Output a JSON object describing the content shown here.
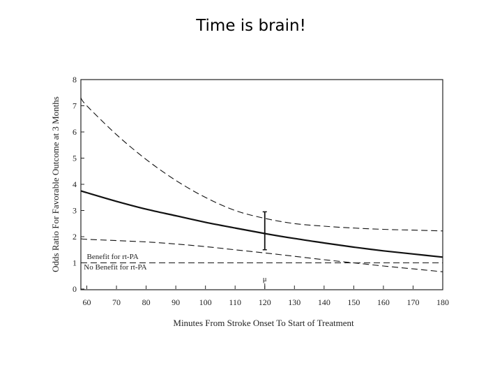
{
  "slide": {
    "title": "Time is brain!"
  },
  "chart_data": {
    "type": "line",
    "title": "",
    "xlabel": "Minutes From Stroke Onset To Start of Treatment",
    "ylabel": "Odds Ratio For Favorable Outcome at 3 Months",
    "xlim": [
      58,
      180
    ],
    "ylim": [
      0,
      8
    ],
    "xticks": [
      60,
      70,
      80,
      90,
      100,
      110,
      120,
      130,
      140,
      150,
      160,
      170,
      180
    ],
    "yticks": [
      0,
      1,
      2,
      3,
      4,
      5,
      6,
      7,
      8
    ],
    "grid": false,
    "x": [
      58,
      60,
      70,
      80,
      90,
      100,
      110,
      120,
      130,
      140,
      150,
      160,
      170,
      180
    ],
    "series": [
      {
        "style": "solid",
        "color": "#111111",
        "values": [
          3.75,
          3.68,
          3.35,
          3.05,
          2.8,
          2.55,
          2.33,
          2.12,
          1.93,
          1.76,
          1.6,
          1.46,
          1.34,
          1.22
        ]
      },
      {
        "style": "dashed",
        "color": "#111111",
        "values": [
          7.3,
          7.0,
          5.9,
          4.95,
          4.15,
          3.5,
          3.0,
          2.7,
          2.5,
          2.4,
          2.33,
          2.28,
          2.25,
          2.22
        ]
      },
      {
        "style": "dashed",
        "color": "#111111",
        "values": [
          1.92,
          1.9,
          1.85,
          1.8,
          1.72,
          1.62,
          1.5,
          1.38,
          1.25,
          1.12,
          1.0,
          0.88,
          0.77,
          0.66
        ]
      },
      {
        "style": "dashed",
        "color": "#111111",
        "values": [
          1.0,
          1.0,
          1.0,
          1.0,
          1.0,
          1.0,
          1.0,
          1.0,
          1.0,
          1.0,
          1.0,
          1.0,
          1.0,
          1.0
        ]
      }
    ],
    "error_bar": {
      "x": 120,
      "low": 1.5,
      "high": 2.95
    },
    "annotations": [
      {
        "text": "Benefit for rt-PA",
        "x": 60,
        "y": 1.15
      },
      {
        "text": "No Benefit for rt-PA",
        "x": 59,
        "y": 0.75
      },
      {
        "text": "μ",
        "x": 120,
        "y": 0.3
      }
    ]
  }
}
